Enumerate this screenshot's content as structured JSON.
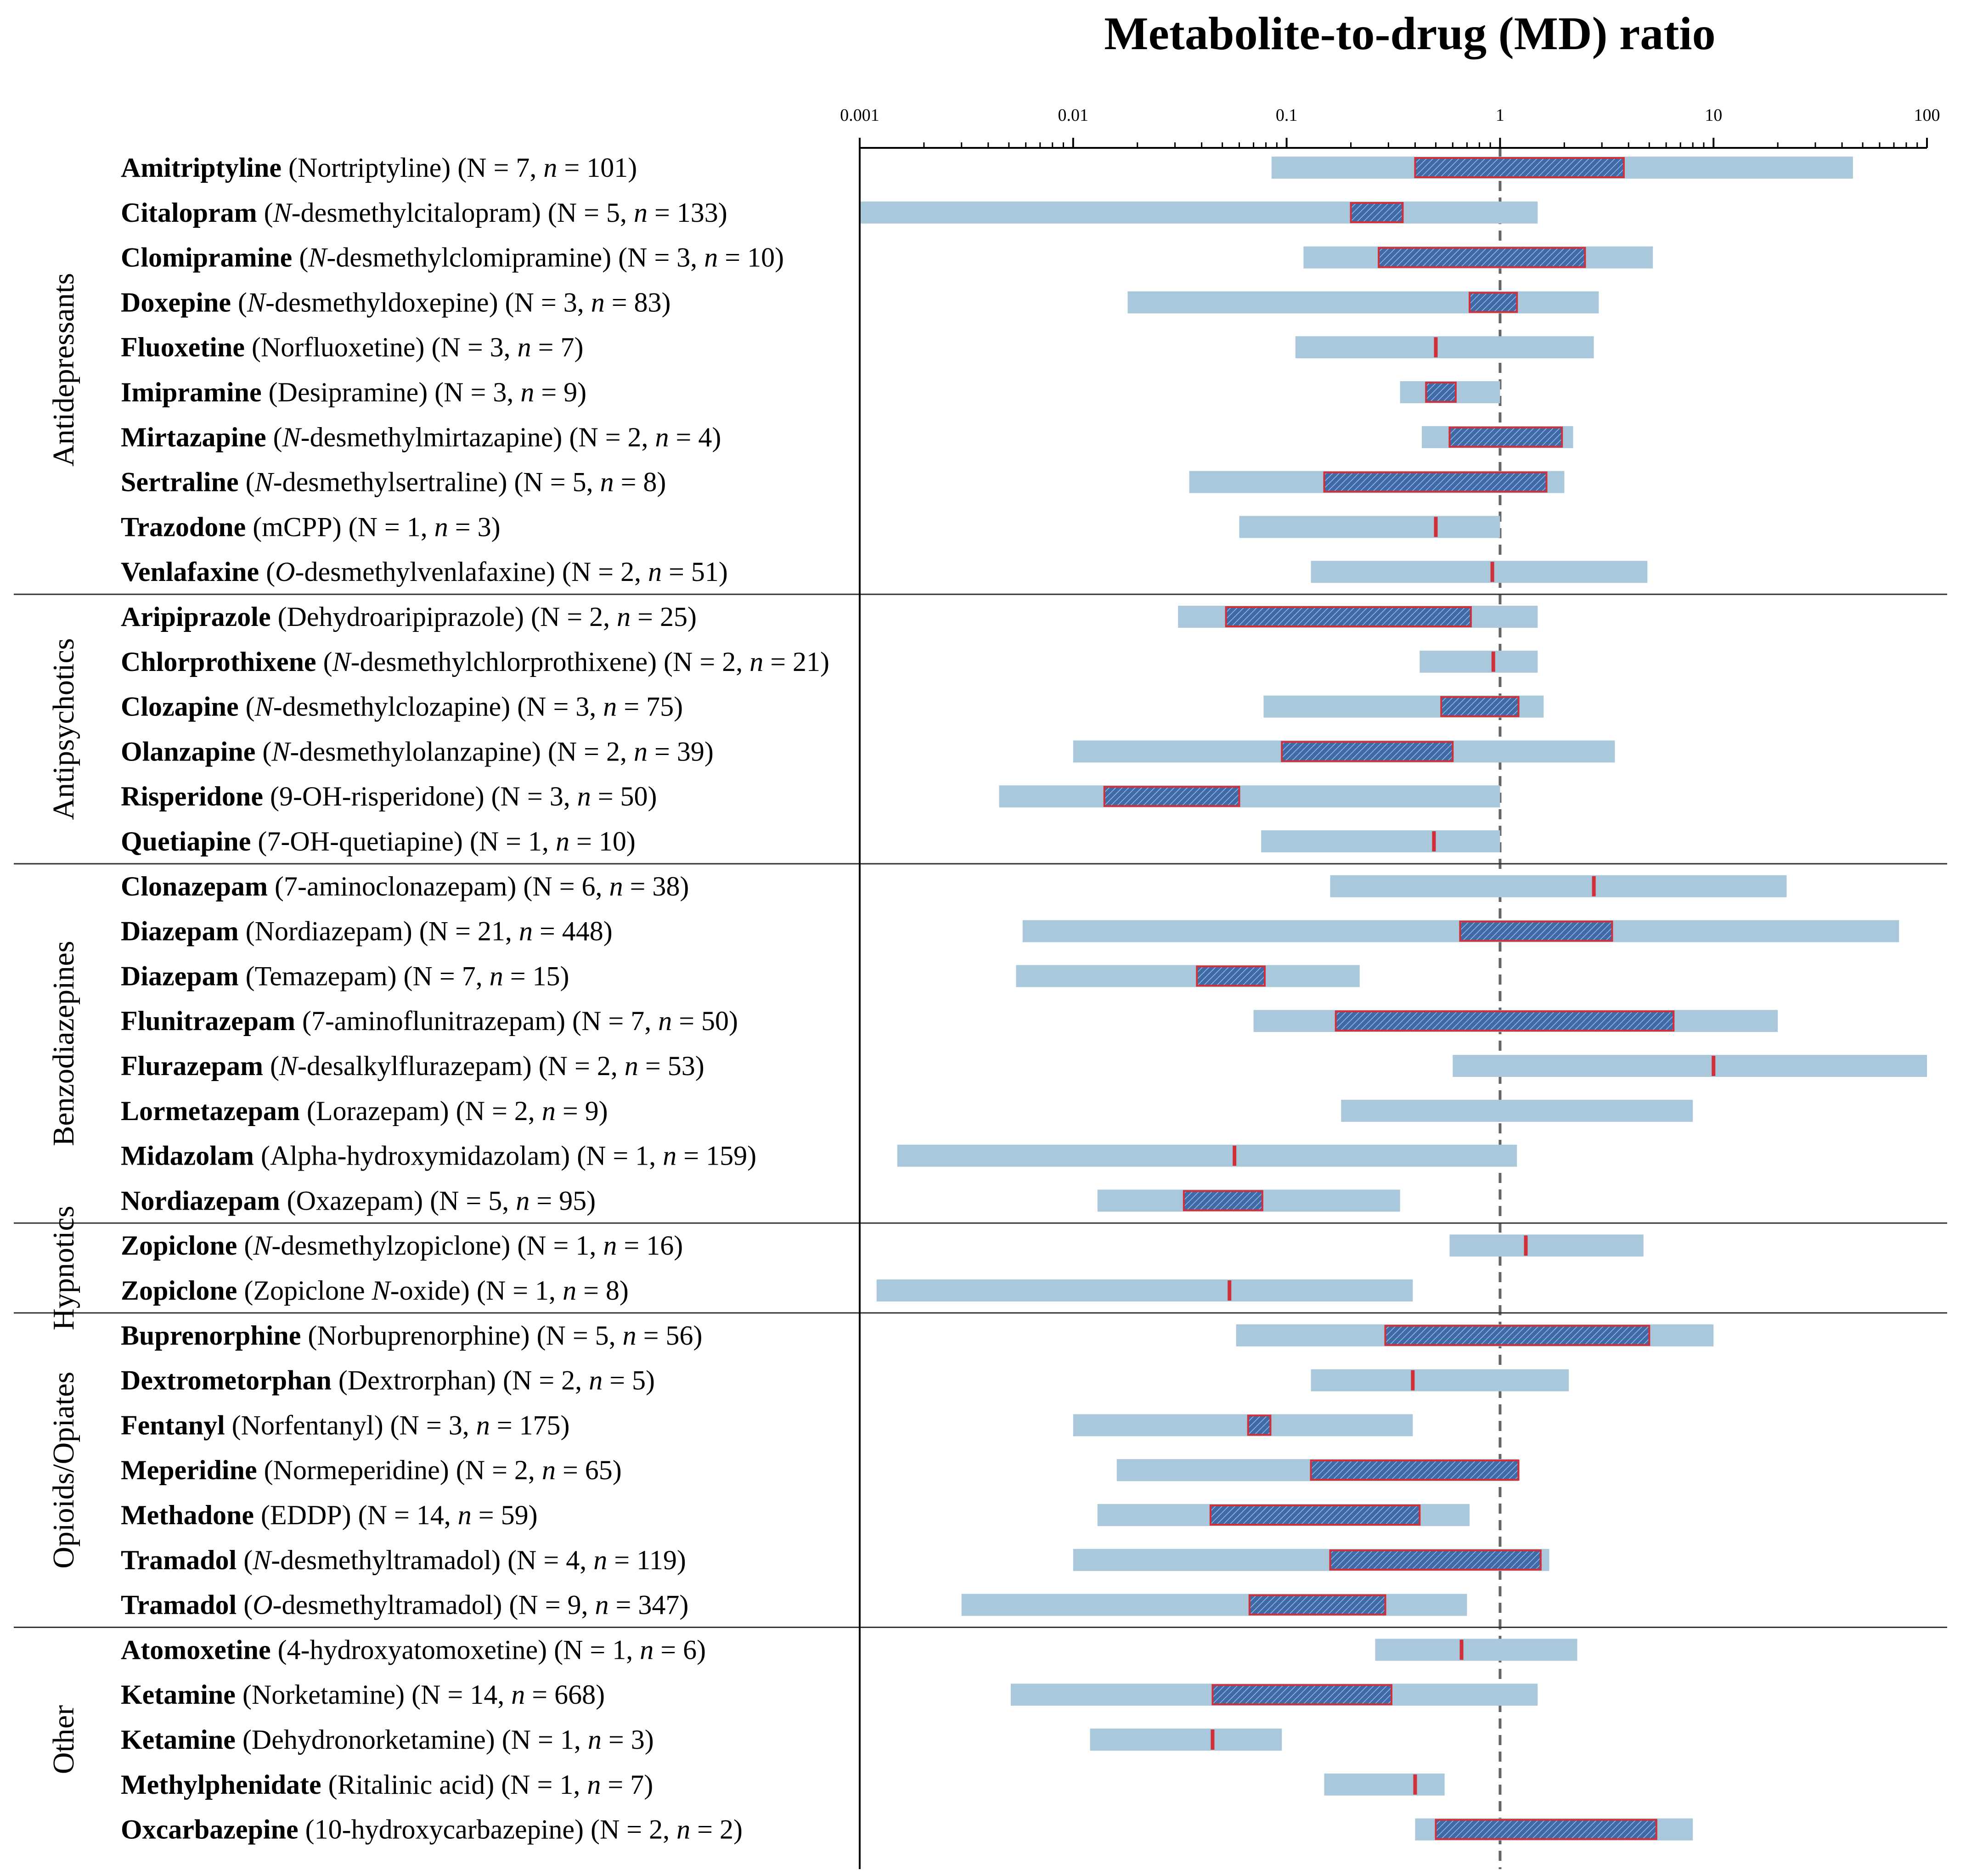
{
  "chart_data": {
    "type": "range-bar",
    "title": "Metabolite-to-drug (MD) ratio",
    "xscale": "log",
    "xlim": [
      0.001,
      100
    ],
    "xticks": [
      "0.001",
      "0.01",
      "0.1",
      "1",
      "10",
      "100"
    ],
    "reference_line": 1,
    "colors": {
      "range": "#aac8dc",
      "iqr_fill": "#3f6aa8",
      "iqr_edge": "#d0303a",
      "axis": "#000000",
      "reference": "#666666"
    },
    "groups": [
      {
        "name": "Antidepressants",
        "rows": [
          {
            "drug": "Amitriptyline",
            "metabolite": "Nortriptyline",
            "N": 7,
            "n": 101,
            "min": 0.085,
            "max": 45,
            "q1": 0.4,
            "q3": 3.8
          },
          {
            "drug": "Citalopram",
            "metabolite": "N-desmethylcitalopram",
            "N": 5,
            "n": 133,
            "min": 0.001,
            "max": 1.5,
            "q1": 0.2,
            "q3": 0.35
          },
          {
            "drug": "Clomipramine",
            "metabolite": "N-desmethylclomipramine",
            "N": 3,
            "n": 10,
            "min": 0.12,
            "max": 5.2,
            "q1": 0.27,
            "q3": 2.5
          },
          {
            "drug": "Doxepine",
            "metabolite": "N-desmethyldoxepine",
            "N": 3,
            "n": 83,
            "min": 0.018,
            "max": 2.9,
            "q1": 0.72,
            "q3": 1.2
          },
          {
            "drug": "Fluoxetine",
            "metabolite": "Norfluoxetine",
            "N": 3,
            "n": 7,
            "min": 0.11,
            "max": 2.75,
            "median": 0.5
          },
          {
            "drug": "Imipramine",
            "metabolite": "Desipramine",
            "N": 3,
            "n": 9,
            "min": 0.34,
            "max": 1,
            "q1": 0.45,
            "q3": 0.62
          },
          {
            "drug": "Mirtazapine",
            "metabolite": "N-desmethylmirtazapine",
            "N": 2,
            "n": 4,
            "min": 0.43,
            "max": 2.2,
            "q1": 0.58,
            "q3": 1.95
          },
          {
            "drug": "Sertraline",
            "metabolite": "N-desmethylsertraline",
            "N": 5,
            "n": 8,
            "min": 0.035,
            "max": 2,
            "q1": 0.15,
            "q3": 1.65
          },
          {
            "drug": "Trazodone",
            "metabolite": "mCPP",
            "N": 1,
            "n": 3,
            "min": 0.06,
            "max": 1,
            "median": 0.5
          },
          {
            "drug": "Venlafaxine",
            "metabolite": "O-desmethylvenlafaxine",
            "N": 2,
            "n": 51,
            "min": 0.13,
            "max": 4.9,
            "median": 0.92
          }
        ]
      },
      {
        "name": "Antipsychotics",
        "rows": [
          {
            "drug": "Aripiprazole",
            "metabolite": "Dehydroaripiprazole",
            "N": 2,
            "n": 25,
            "min": 0.031,
            "max": 1.5,
            "q1": 0.052,
            "q3": 0.73
          },
          {
            "drug": "Chlorprothixene",
            "metabolite": "N-desmethylchlorprothixene",
            "N": 2,
            "n": 21,
            "min": 0.42,
            "max": 1.5,
            "median": 0.93
          },
          {
            "drug": "Clozapine",
            "metabolite": "N-desmethylclozapine",
            "N": 3,
            "n": 75,
            "min": 0.078,
            "max": 1.6,
            "q1": 0.53,
            "q3": 1.22
          },
          {
            "drug": "Olanzapine",
            "metabolite": "N-desmethylolanzapine",
            "N": 2,
            "n": 39,
            "min": 0.01,
            "max": 3.45,
            "q1": 0.095,
            "q3": 0.6
          },
          {
            "drug": "Risperidone",
            "metabolite": "9-OH-risperidone",
            "N": 3,
            "n": 50,
            "min": 0.0045,
            "max": 1,
            "q1": 0.014,
            "q3": 0.06
          },
          {
            "drug": "Quetiapine",
            "metabolite": "7-OH-quetiapine",
            "N": 1,
            "n": 10,
            "min": 0.076,
            "max": 1,
            "median": 0.49
          }
        ]
      },
      {
        "name": "Benzodiazepines",
        "rows": [
          {
            "drug": "Clonazepam",
            "metabolite": "7-aminoclonazepam",
            "N": 6,
            "n": 38,
            "min": 0.16,
            "max": 22,
            "median": 2.75
          },
          {
            "drug": "Diazepam",
            "metabolite": "Nordiazepam",
            "N": 21,
            "n": 448,
            "min": 0.0058,
            "max": 74,
            "q1": 0.65,
            "q3": 3.35
          },
          {
            "drug": "Diazepam",
            "metabolite": "Temazepam",
            "N": 7,
            "n": 15,
            "min": 0.0054,
            "max": 0.22,
            "q1": 0.038,
            "q3": 0.079
          },
          {
            "drug": "Flunitrazepam",
            "metabolite": "7-aminoflunitrazepam",
            "N": 7,
            "n": 50,
            "min": 0.07,
            "max": 20,
            "q1": 0.17,
            "q3": 6.5
          },
          {
            "drug": "Flurazepam",
            "metabolite": "N-desalkylflurazepam",
            "N": 2,
            "n": 53,
            "min": 0.6,
            "max": 100,
            "median": 10
          },
          {
            "drug": "Lormetazepam",
            "metabolite": "Lorazepam",
            "N": 2,
            "n": 9,
            "min": 0.18,
            "max": 8
          },
          {
            "drug": "Midazolam",
            "metabolite": "Alpha-hydroxymidazolam",
            "N": 1,
            "n": 159,
            "min": 0.0015,
            "max": 1.2,
            "median": 0.057
          },
          {
            "drug": "Nordiazepam",
            "metabolite": "Oxazepam",
            "N": 5,
            "n": 95,
            "min": 0.013,
            "max": 0.34,
            "q1": 0.033,
            "q3": 0.077
          }
        ]
      },
      {
        "name": "Hypnotics",
        "rows": [
          {
            "drug": "Zopiclone",
            "metabolite": "N-desmethylzopiclone",
            "N": 1,
            "n": 16,
            "min": 0.58,
            "max": 4.7,
            "median": 1.32
          },
          {
            "drug": "Zopiclone",
            "metabolite": "Zopiclone N-oxide",
            "N": 1,
            "n": 8,
            "min": 0.0012,
            "max": 0.39,
            "median": 0.054
          }
        ]
      },
      {
        "name": "Opioids/Opiates",
        "rows": [
          {
            "drug": "Buprenorphine",
            "metabolite": "Norbuprenorphine",
            "N": 5,
            "n": 56,
            "min": 0.058,
            "max": 10,
            "q1": 0.29,
            "q3": 5
          },
          {
            "drug": "Dextrometorphan",
            "metabolite": "Dextrorphan",
            "N": 2,
            "n": 5,
            "min": 0.13,
            "max": 2.1,
            "median": 0.39
          },
          {
            "drug": "Fentanyl",
            "metabolite": "Norfentanyl",
            "N": 3,
            "n": 175,
            "min": 0.01,
            "max": 0.39,
            "q1": 0.066,
            "q3": 0.084
          },
          {
            "drug": "Meperidine",
            "metabolite": "Normeperidine",
            "N": 2,
            "n": 65,
            "min": 0.016,
            "max": 1.22,
            "q1": 0.13,
            "q3": 1.22
          },
          {
            "drug": "Methadone",
            "metabolite": "EDDP",
            "N": 14,
            "n": 59,
            "min": 0.013,
            "max": 0.72,
            "q1": 0.044,
            "q3": 0.42
          },
          {
            "drug": "Tramadol",
            "metabolite": "N-desmethyltramadol",
            "N": 4,
            "n": 119,
            "min": 0.01,
            "max": 1.7,
            "q1": 0.16,
            "q3": 1.55
          },
          {
            "drug": "Tramadol",
            "metabolite": "O-desmethyltramadol",
            "N": 9,
            "n": 347,
            "min": 0.003,
            "max": 0.7,
            "q1": 0.067,
            "q3": 0.29
          }
        ]
      },
      {
        "name": "Other",
        "rows": [
          {
            "drug": "Atomoxetine",
            "metabolite": "4-hydroxyatomoxetine",
            "N": 1,
            "n": 6,
            "min": 0.26,
            "max": 2.3,
            "median": 0.66
          },
          {
            "drug": "Ketamine",
            "metabolite": "Norketamine",
            "N": 14,
            "n": 668,
            "min": 0.0051,
            "max": 1.5,
            "q1": 0.045,
            "q3": 0.31
          },
          {
            "drug": "Ketamine",
            "metabolite": "Dehydronorketamine",
            "N": 1,
            "n": 3,
            "min": 0.012,
            "max": 0.095,
            "median": 0.045
          },
          {
            "drug": "Methylphenidate",
            "metabolite": "Ritalinic acid",
            "N": 1,
            "n": 7,
            "min": 0.15,
            "max": 0.55,
            "median": 0.4
          },
          {
            "drug": "Oxcarbazepine",
            "metabolite": "10-hydroxycarbazepine",
            "N": 2,
            "n": 2,
            "min": 0.4,
            "max": 8,
            "q1": 0.5,
            "q3": 5.4
          }
        ]
      }
    ]
  }
}
